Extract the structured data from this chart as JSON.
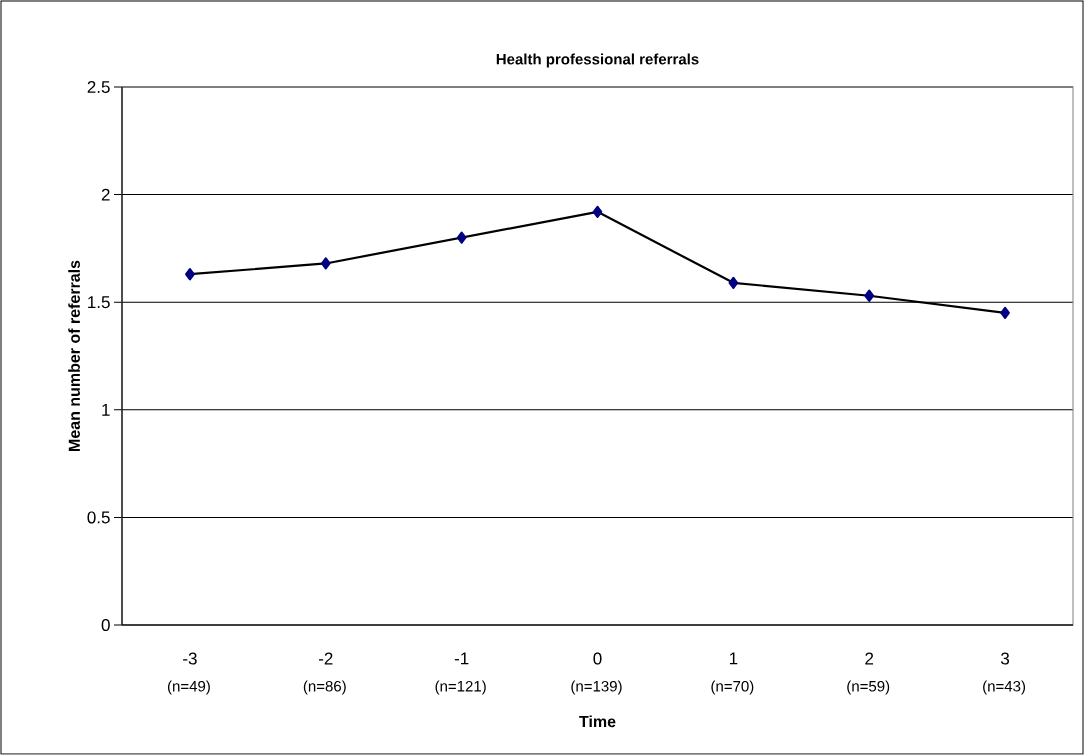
{
  "chart_data": {
    "type": "line",
    "title": "Health professional  referrals",
    "xlabel": "Time",
    "ylabel": "Mean number of referrals",
    "categories": [
      "-3",
      "-2",
      "-1",
      "0",
      "1",
      "2",
      "3"
    ],
    "annotations": [
      "(n=49)",
      "(n=86)",
      "(n=121)",
      "(n=139)",
      "(n=70)",
      "(n=59)",
      "(n=43)"
    ],
    "series": [
      {
        "color": "#000080",
        "values": [
          1.63,
          1.68,
          1.8,
          1.92,
          1.59,
          1.53,
          1.45
        ]
      }
    ],
    "ylim": [
      0,
      2.5
    ],
    "yticks": [
      0,
      0.5,
      1,
      1.5,
      2,
      2.5
    ],
    "grid": "y",
    "marker": "diamond",
    "line_style": "solid"
  }
}
